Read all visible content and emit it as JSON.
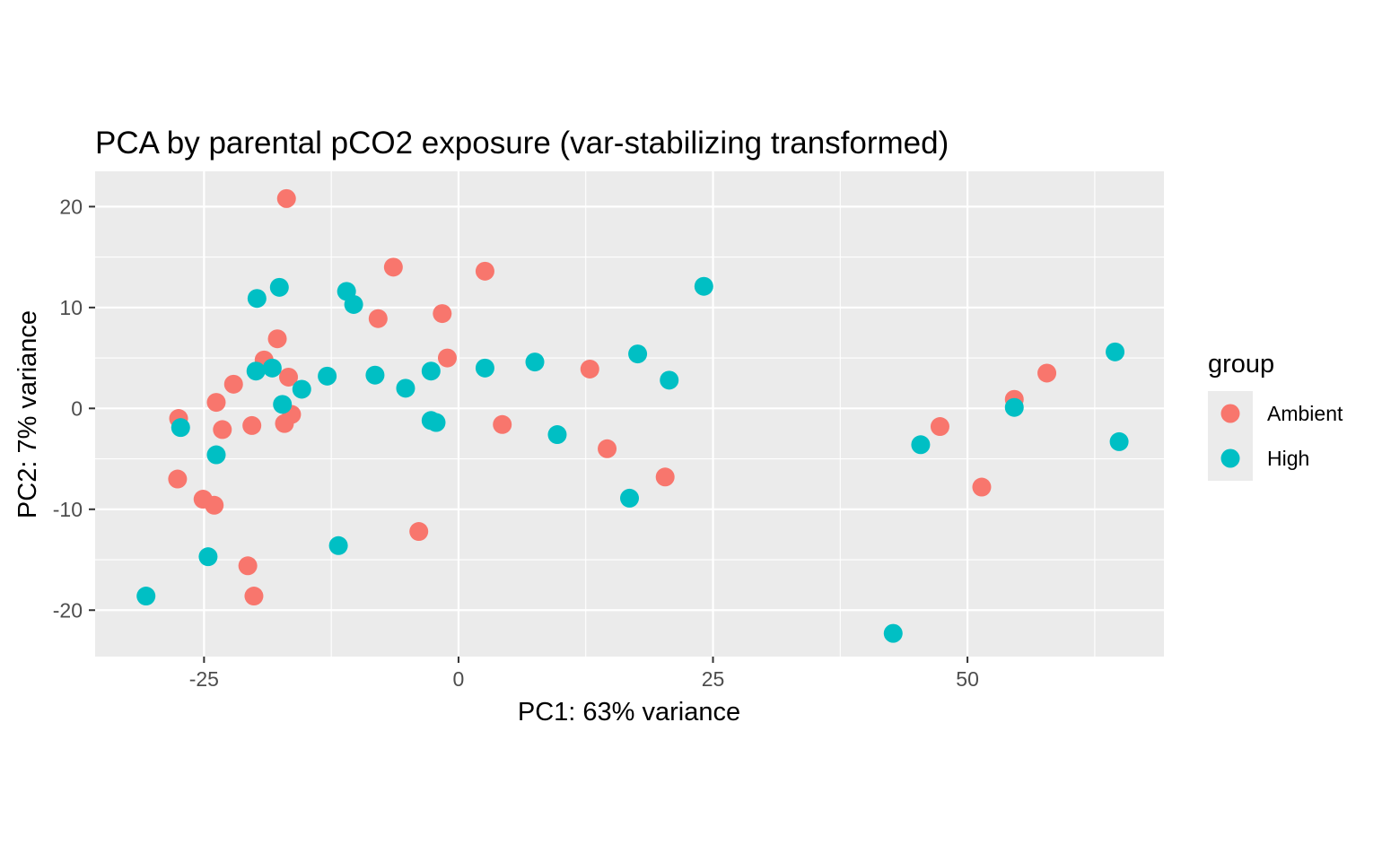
{
  "chart_data": {
    "type": "scatter",
    "title": "PCA by parental pCO2 exposure (var-stabilizing transformed)",
    "xlabel": "PC1: 63% variance",
    "ylabel": "PC2: 7% variance",
    "xlim": [
      -35.7,
      69.3
    ],
    "ylim": [
      -24.6,
      23.5
    ],
    "x_ticks": [
      -25,
      0,
      25,
      50
    ],
    "x_tick_labels": [
      "-25",
      "0",
      "25",
      "50"
    ],
    "y_ticks": [
      -20,
      -10,
      0,
      10,
      20
    ],
    "y_tick_labels": [
      "-20",
      "-10",
      "0",
      "10",
      "20"
    ],
    "grid": true,
    "legend": {
      "title": "group",
      "placement": "right",
      "entries": [
        "Ambient",
        "High"
      ]
    },
    "series": [
      {
        "name": "Ambient",
        "color": "#F8766D",
        "points": [
          {
            "x": -16.9,
            "y": 20.8
          },
          {
            "x": -6.4,
            "y": 14.0
          },
          {
            "x": 2.6,
            "y": 13.6
          },
          {
            "x": -7.9,
            "y": 8.9
          },
          {
            "x": -1.6,
            "y": 9.4
          },
          {
            "x": -1.1,
            "y": 5.0
          },
          {
            "x": -17.8,
            "y": 6.9
          },
          {
            "x": -19.1,
            "y": 4.8
          },
          {
            "x": -16.7,
            "y": 3.1
          },
          {
            "x": -22.1,
            "y": 2.4
          },
          {
            "x": -23.8,
            "y": 0.6
          },
          {
            "x": -16.4,
            "y": -0.6
          },
          {
            "x": -17.1,
            "y": -1.5
          },
          {
            "x": -20.3,
            "y": -1.7
          },
          {
            "x": -23.2,
            "y": -2.1
          },
          {
            "x": -27.5,
            "y": -1.0
          },
          {
            "x": 4.3,
            "y": -1.6
          },
          {
            "x": 12.9,
            "y": 3.9
          },
          {
            "x": 14.6,
            "y": -4.0
          },
          {
            "x": 20.3,
            "y": -6.8
          },
          {
            "x": -27.6,
            "y": -7.0
          },
          {
            "x": -25.1,
            "y": -9.0
          },
          {
            "x": -24.0,
            "y": -9.6
          },
          {
            "x": -3.9,
            "y": -12.2
          },
          {
            "x": -20.7,
            "y": -15.6
          },
          {
            "x": -20.1,
            "y": -18.6
          },
          {
            "x": 47.3,
            "y": -1.8
          },
          {
            "x": 51.4,
            "y": -7.8
          },
          {
            "x": 54.6,
            "y": 0.9
          },
          {
            "x": 57.8,
            "y": 3.5
          }
        ]
      },
      {
        "name": "High",
        "color": "#00BFC4",
        "points": [
          {
            "x": -17.6,
            "y": 12.0
          },
          {
            "x": -19.8,
            "y": 10.9
          },
          {
            "x": -11.0,
            "y": 11.6
          },
          {
            "x": -10.3,
            "y": 10.3
          },
          {
            "x": -19.9,
            "y": 3.7
          },
          {
            "x": -18.3,
            "y": 4.0
          },
          {
            "x": -12.9,
            "y": 3.2
          },
          {
            "x": -8.2,
            "y": 3.3
          },
          {
            "x": -15.4,
            "y": 1.9
          },
          {
            "x": -17.3,
            "y": 0.4
          },
          {
            "x": -5.2,
            "y": 2.0
          },
          {
            "x": -2.7,
            "y": 3.7
          },
          {
            "x": 2.6,
            "y": 4.0
          },
          {
            "x": 7.5,
            "y": 4.6
          },
          {
            "x": 17.6,
            "y": 5.4
          },
          {
            "x": 20.7,
            "y": 2.8
          },
          {
            "x": 24.1,
            "y": 12.1
          },
          {
            "x": -2.7,
            "y": -1.2
          },
          {
            "x": -2.2,
            "y": -1.4
          },
          {
            "x": 9.7,
            "y": -2.6
          },
          {
            "x": 16.8,
            "y": -8.9
          },
          {
            "x": -27.3,
            "y": -1.9
          },
          {
            "x": -23.8,
            "y": -4.6
          },
          {
            "x": -24.6,
            "y": -14.7
          },
          {
            "x": -11.8,
            "y": -13.6
          },
          {
            "x": -30.7,
            "y": -18.6
          },
          {
            "x": 42.7,
            "y": -22.3
          },
          {
            "x": 45.4,
            "y": -3.6
          },
          {
            "x": 54.6,
            "y": 0.1
          },
          {
            "x": 64.5,
            "y": 5.6
          },
          {
            "x": 64.9,
            "y": -3.3
          }
        ]
      }
    ]
  }
}
